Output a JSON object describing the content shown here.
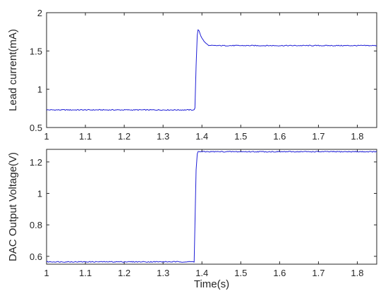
{
  "chart_data": [
    {
      "type": "line",
      "title": "",
      "xlabel": "",
      "ylabel": "Lead current(mA)",
      "xlim": [
        1,
        1.85
      ],
      "ylim": [
        0.5,
        2
      ],
      "xticks": [
        1,
        1.1,
        1.2,
        1.3,
        1.4,
        1.5,
        1.6,
        1.7,
        1.8
      ],
      "xtick_labels": [
        "1",
        "1.1",
        "1.2",
        "1.3",
        "1.4",
        "1.5",
        "1.6",
        "1.7",
        "1.8"
      ],
      "yticks": [
        0.5,
        1,
        1.5,
        2
      ],
      "ytick_labels": [
        "0.5",
        "1",
        "1.5",
        "2"
      ],
      "grid": false,
      "series": [
        {
          "color": "#1f1fd6",
          "x": [
            1.0,
            1.38,
            1.382,
            1.385,
            1.388,
            1.39,
            1.393,
            1.397,
            1.402,
            1.408,
            1.415,
            1.42,
            1.425,
            1.5,
            1.6,
            1.7,
            1.8,
            1.85
          ],
          "y": [
            0.73,
            0.73,
            0.76,
            1.3,
            1.7,
            1.78,
            1.76,
            1.7,
            1.65,
            1.61,
            1.58,
            1.57,
            1.57,
            1.57,
            1.57,
            1.57,
            1.57,
            1.57
          ]
        }
      ]
    },
    {
      "type": "line",
      "title": "",
      "xlabel": "Time(s)",
      "ylabel": "DAC Output Voltage(V)",
      "xlim": [
        1,
        1.85
      ],
      "ylim": [
        0.55,
        1.28
      ],
      "xticks": [
        1,
        1.1,
        1.2,
        1.3,
        1.4,
        1.5,
        1.6,
        1.7,
        1.8
      ],
      "xtick_labels": [
        "1",
        "1.1",
        "1.2",
        "1.3",
        "1.4",
        "1.5",
        "1.6",
        "1.7",
        "1.8"
      ],
      "yticks": [
        0.6,
        0.8,
        1,
        1.2
      ],
      "ytick_labels": [
        "0.6",
        "0.8",
        "1",
        "1.2"
      ],
      "grid": false,
      "series": [
        {
          "color": "#1f1fd6",
          "x": [
            1.0,
            1.38,
            1.382,
            1.385,
            1.388,
            1.39,
            1.5,
            1.6,
            1.7,
            1.8,
            1.85
          ],
          "y": [
            0.565,
            0.565,
            0.8,
            1.15,
            1.25,
            1.265,
            1.265,
            1.265,
            1.265,
            1.265,
            1.265
          ]
        }
      ]
    }
  ]
}
